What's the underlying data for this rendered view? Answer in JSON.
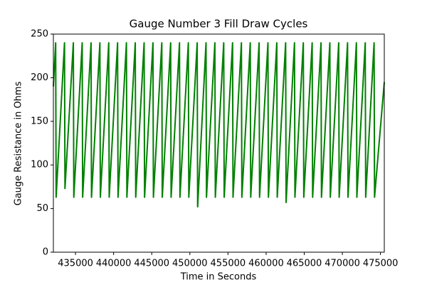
{
  "chart_data": {
    "type": "line",
    "title": "Gauge Number 3 Fill Draw Cycles",
    "x_label": "Time in Seconds",
    "y_label": "Gauge Resistance in Ohms",
    "x": [
      432100,
      432400,
      432460,
      433560,
      433620,
      434720,
      434780,
      435880,
      435940,
      437040,
      437100,
      438200,
      438260,
      439360,
      439420,
      440520,
      440580,
      441680,
      441740,
      442840,
      442900,
      444000,
      444060,
      445160,
      445220,
      446320,
      446380,
      447480,
      447540,
      448640,
      448700,
      449800,
      449860,
      450960,
      451020,
      452120,
      452180,
      453280,
      453340,
      454440,
      454500,
      455600,
      455660,
      456760,
      456820,
      457920,
      457980,
      459080,
      459140,
      460240,
      460300,
      461400,
      461460,
      462560,
      462620,
      463720,
      463780,
      464880,
      464940,
      466040,
      466100,
      467200,
      467260,
      468360,
      468420,
      469520,
      469580,
      470680,
      470740,
      471840,
      471900,
      473000,
      473060,
      474160,
      474220,
      475500
    ],
    "series": [
      {
        "name": "Gauge Resistance",
        "color": "#008000",
        "values": [
          190,
          240,
          63,
          240,
          73,
          240,
          63,
          240,
          63,
          240,
          63,
          240,
          63,
          240,
          63,
          240,
          63,
          240,
          63,
          240,
          63,
          240,
          63,
          240,
          63,
          240,
          63,
          240,
          63,
          240,
          63,
          240,
          63,
          240,
          52,
          240,
          63,
          240,
          63,
          240,
          63,
          240,
          63,
          240,
          63,
          240,
          63,
          240,
          63,
          240,
          63,
          240,
          63,
          240,
          57,
          240,
          63,
          240,
          63,
          240,
          63,
          240,
          63,
          240,
          63,
          240,
          63,
          240,
          63,
          240,
          63,
          240,
          63,
          240,
          63,
          195
        ]
      }
    ],
    "xlim": [
      432100,
      475500
    ],
    "ylim": [
      0,
      250
    ],
    "xticks": [
      435000,
      440000,
      445000,
      450000,
      455000,
      460000,
      465000,
      470000,
      475000
    ],
    "yticks": [
      0,
      50,
      100,
      150,
      200,
      250
    ],
    "grid": false
  }
}
